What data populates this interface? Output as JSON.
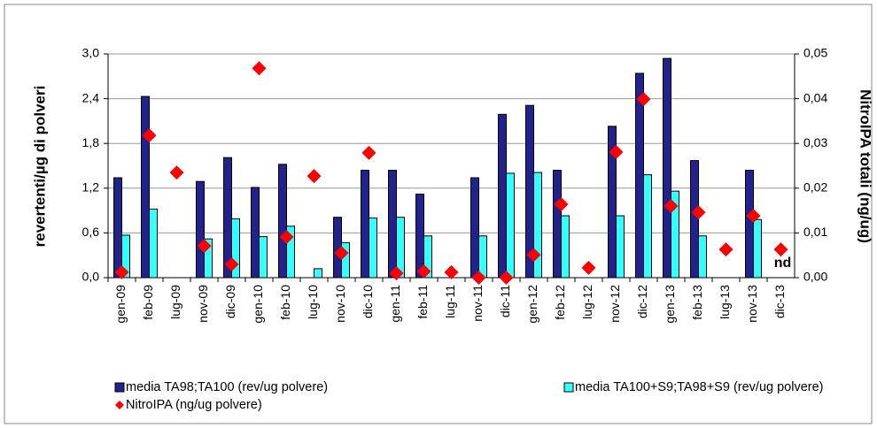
{
  "chart_data": {
    "type": "bar",
    "y_label": "revertenti/µg di  polveri",
    "y2_label": "NitroIPA totali (ng/ug)",
    "annotation": "nd",
    "categories": [
      "gen-09",
      "feb-09",
      "lug-09",
      "nov-09",
      "dic-09",
      "gen-10",
      "feb-10",
      "lug-10",
      "nov-10",
      "dic-10",
      "gen-11",
      "feb-11",
      "lug-11",
      "nov-11",
      "dic-11",
      "gen-12",
      "feb-12",
      "lug-12",
      "nov-12",
      "dic-12",
      "gen-13",
      "feb-13",
      "lug-13",
      "nov-13",
      "dic-13"
    ],
    "series": [
      {
        "name": "media TA98;TA100 (rev/ug polvere)",
        "type": "bar",
        "color": "#22228c",
        "axis": "y",
        "values": [
          1.34,
          2.43,
          null,
          1.29,
          1.61,
          1.21,
          1.52,
          null,
          0.81,
          1.44,
          1.44,
          1.12,
          null,
          1.34,
          2.19,
          2.31,
          1.44,
          null,
          2.03,
          2.74,
          2.94,
          1.57,
          null,
          1.44,
          null
        ]
      },
      {
        "name": "media TA100+S9;TA98+S9 (rev/ug polvere)",
        "type": "bar",
        "color": "#33ffff",
        "axis": "y",
        "values": [
          0.57,
          0.92,
          null,
          0.52,
          0.79,
          0.55,
          0.69,
          0.12,
          0.47,
          0.8,
          0.81,
          0.56,
          null,
          0.56,
          1.4,
          1.41,
          0.83,
          null,
          0.83,
          1.38,
          1.16,
          0.56,
          null,
          0.78,
          null
        ]
      },
      {
        "name": "NitroIPA  (ng/ug polvere)",
        "type": "scatter",
        "color": "#ff0000",
        "axis": "y2",
        "values": [
          0.0012,
          0.0318,
          0.0235,
          0.0071,
          0.003,
          0.0468,
          0.0091,
          0.0227,
          0.0055,
          0.0279,
          0.001,
          0.0014,
          0.0012,
          0.0,
          0.0,
          0.0051,
          0.0164,
          0.0022,
          0.0281,
          0.0399,
          0.016,
          0.0146,
          0.0063,
          0.0138,
          0.0063
        ]
      }
    ],
    "ylim": [
      0,
      3
    ],
    "yticks": [
      {
        "value": 0,
        "label": "0,0"
      },
      {
        "value": 0.6,
        "label": "0,6"
      },
      {
        "value": 1.2,
        "label": "1,2"
      },
      {
        "value": 1.8,
        "label": "1,8"
      },
      {
        "value": 2.4,
        "label": "2,4"
      },
      {
        "value": 3,
        "label": "3,0"
      }
    ],
    "y2lim": [
      0,
      0.05
    ],
    "y2ticks": [
      {
        "value": 0,
        "label": "0,00"
      },
      {
        "value": 0.01,
        "label": "0,01"
      },
      {
        "value": 0.02,
        "label": "0,02"
      },
      {
        "value": 0.03,
        "label": "0,03"
      },
      {
        "value": 0.04,
        "label": "0,04"
      },
      {
        "value": 0.05,
        "label": "0,05"
      }
    ],
    "grid": true,
    "legend": "bottom"
  }
}
